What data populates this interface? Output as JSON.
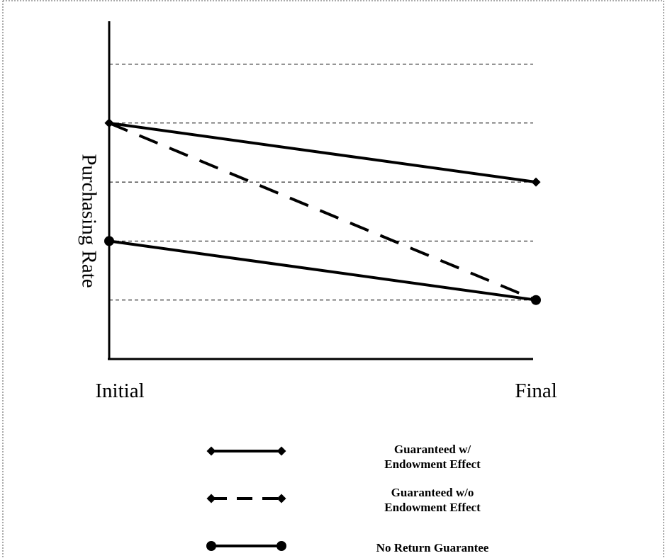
{
  "chart_data": {
    "type": "line",
    "title": "",
    "xlabel": "",
    "ylabel": "Purchasing Rate",
    "categories": [
      "Initial",
      "Final"
    ],
    "y_axis_tick_labels": "none",
    "grid": "horizontal dashed",
    "legend_position": "bottom",
    "series": [
      {
        "name": "Guaranteed w/ Endowment Effect",
        "values": [
          4,
          3
        ],
        "line_style": "solid",
        "marker": "diamond"
      },
      {
        "name": "Guaranteed w/o Endowment Effect",
        "values": [
          4,
          1
        ],
        "line_style": "dashed",
        "marker": "diamond"
      },
      {
        "name": "No Return Guarantee",
        "values": [
          2,
          1
        ],
        "line_style": "solid",
        "marker": "circle"
      }
    ]
  },
  "legend": {
    "items": [
      {
        "line1": "Guaranteed w/",
        "line2": "Endowment Effect"
      },
      {
        "line1": "Guaranteed w/o",
        "line2": "Endowment Effect"
      },
      {
        "line1": "No Return Guarantee",
        "line2": ""
      }
    ]
  },
  "colors": {
    "line": "#000000",
    "border": "#555555",
    "background": "#ffffff"
  }
}
